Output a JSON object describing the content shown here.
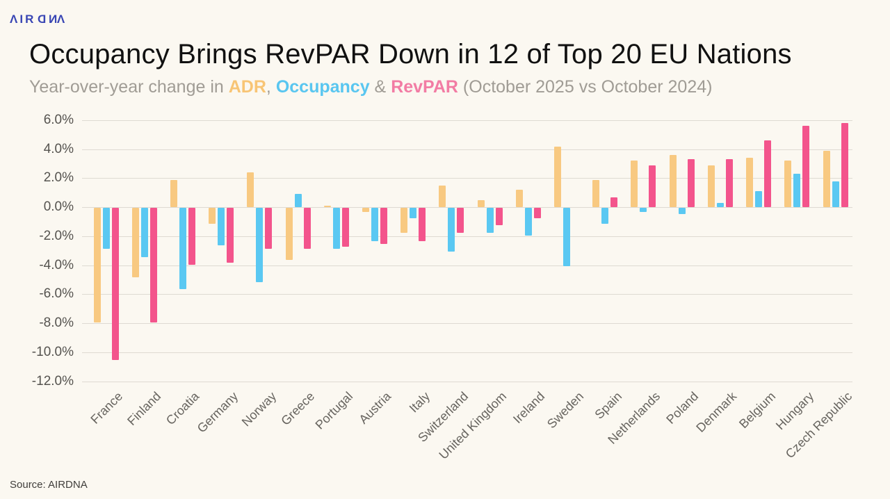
{
  "logo": {
    "brand": "AIRDNA",
    "color": "#3946B4",
    "letters": [
      {
        "ch": "Λ",
        "flip": false
      },
      {
        "ch": "I",
        "flip": false
      },
      {
        "ch": "R",
        "flip": false
      },
      {
        "ch": "D",
        "flip": true
      },
      {
        "ch": "N",
        "flip": true
      },
      {
        "ch": "Λ",
        "flip": false
      }
    ]
  },
  "header": {
    "title": "Occupancy Brings RevPAR Down in 12 of Top 20 EU Nations",
    "subtitle_prefix": "Year-over-year change in ",
    "subtitle_sep1": ", ",
    "subtitle_sep2": " & ",
    "subtitle_suffix": " (October 2025 vs October 2024)",
    "subtitle_color": "#A09C95",
    "title_color": "#111111"
  },
  "legend": {
    "adr": {
      "label": "ADR",
      "text_color": "#F8C575"
    },
    "occupancy": {
      "label": "Occupancy",
      "text_color": "#59C6F0"
    },
    "revpar": {
      "label": "RevPAR",
      "text_color": "#F27CA4"
    }
  },
  "chart_data": {
    "type": "bar",
    "title": "Occupancy Brings RevPAR Down in 12 of Top 20 EU Nations",
    "subtitle": "Year-over-year change in ADR, Occupancy & RevPAR (October 2025 vs October 2024)",
    "unit": "percent",
    "categories": [
      "France",
      "Finland",
      "Croatia",
      "Germany",
      "Norway",
      "Greece",
      "Portugal",
      "Austria",
      "Italy",
      "Switzerland",
      "United Kingdom",
      "Ireland",
      "Sweden",
      "Spain",
      "Netherlands",
      "Poland",
      "Denmark",
      "Belgium",
      "Hungary",
      "Czech Republic"
    ],
    "series": [
      {
        "name": "ADR",
        "color": "#F8C981",
        "values": [
          -7.9,
          -4.8,
          1.9,
          -1.1,
          2.4,
          -3.6,
          0.1,
          -0.3,
          -1.7,
          1.5,
          0.5,
          1.2,
          4.2,
          1.9,
          3.2,
          3.6,
          2.9,
          3.4,
          3.2,
          3.9
        ]
      },
      {
        "name": "Occupancy",
        "color": "#5AC8F2",
        "values": [
          -2.8,
          -3.4,
          -5.6,
          -2.6,
          -5.1,
          0.9,
          -2.8,
          -2.3,
          -0.7,
          -3.0,
          -1.7,
          -1.9,
          -4.0,
          -1.1,
          -0.3,
          -0.4,
          0.3,
          1.1,
          2.3,
          1.8
        ]
      },
      {
        "name": "RevPAR",
        "color": "#F3548C",
        "values": [
          -10.5,
          -7.9,
          -3.9,
          -3.8,
          -2.8,
          -2.8,
          -2.7,
          -2.5,
          -2.3,
          -1.7,
          -1.2,
          -0.7,
          0.0,
          0.7,
          2.9,
          3.3,
          3.3,
          4.6,
          5.6,
          5.8
        ]
      }
    ],
    "ylim": [
      -12,
      6
    ],
    "ytick_values": [
      6,
      4,
      2,
      0,
      -2,
      -4,
      -6,
      -8,
      -10,
      -12
    ],
    "ytick_labels": [
      "6.0%",
      "4.0%",
      "2.0%",
      "0.0%",
      "-2.0%",
      "-4.0%",
      "-6.0%",
      "-8.0%",
      "-10.0%",
      "-12.0%"
    ],
    "grid": true,
    "legend_position": "inline-in-subtitle",
    "gridline_color": "#DEDAD2"
  },
  "footer": {
    "source": "Source: AIRDNA"
  }
}
